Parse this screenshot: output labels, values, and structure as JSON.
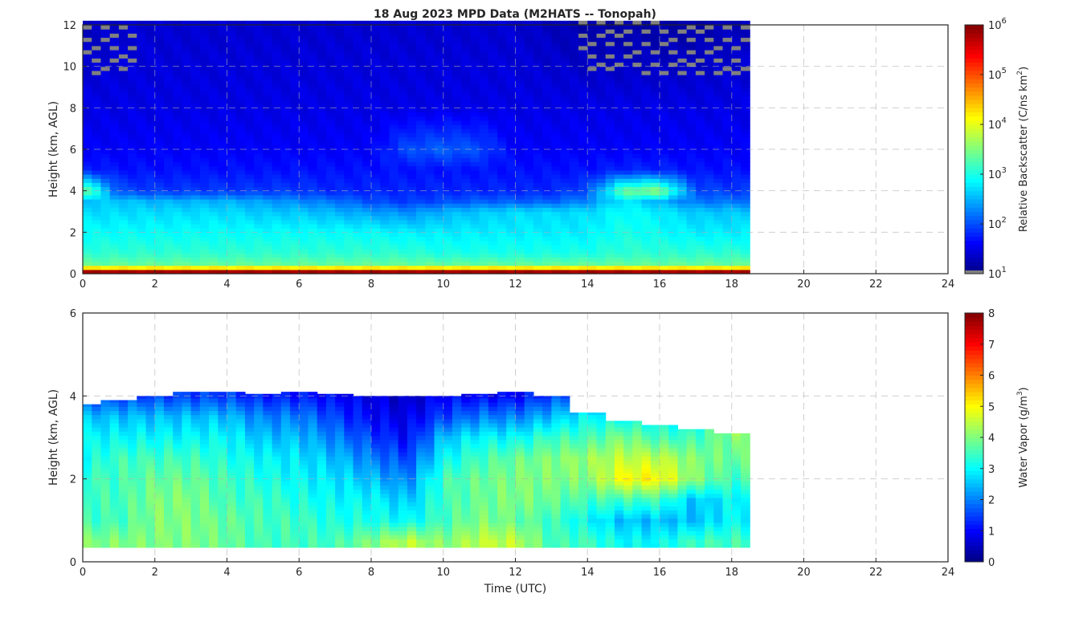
{
  "title": "18 Aug 2023 MPD Data (M2HATS -- Tonopah)",
  "chart_data": [
    {
      "type": "heatmap",
      "panel": "top",
      "title": "18 Aug 2023 MPD Data (M2HATS -- Tonopah)",
      "xlabel": "",
      "ylabel": "Height (km, AGL)",
      "xlim": [
        0,
        24
      ],
      "ylim": [
        0,
        12
      ],
      "xticks": [
        "0",
        "2",
        "4",
        "6",
        "8",
        "10",
        "12",
        "14",
        "16",
        "18",
        "20",
        "22",
        "24"
      ],
      "yticks": [
        "0",
        "2",
        "4",
        "6",
        "8",
        "10",
        "12"
      ],
      "grid": true,
      "colormap": "jet",
      "color_scale": "log",
      "colorbar": {
        "label": "Relative Backscatter (C/ns km²)",
        "label_main": "Relative Backscatter (C/ns km",
        "label_sup": "2",
        "label_end": ")",
        "range_log10": [
          1,
          6
        ],
        "ticks": [
          {
            "base": "10",
            "exp": "1"
          },
          {
            "base": "10",
            "exp": "2"
          },
          {
            "base": "10",
            "exp": "3"
          },
          {
            "base": "10",
            "exp": "4"
          },
          {
            "base": "10",
            "exp": "5"
          },
          {
            "base": "10",
            "exp": "6"
          }
        ]
      },
      "data_end_hour": 18.3,
      "hours": [
        0,
        1,
        2,
        3,
        4,
        5,
        6,
        7,
        8,
        9,
        10,
        11,
        12,
        13,
        14,
        15,
        16,
        17,
        18
      ],
      "heights_km": [
        0.1,
        0.4,
        1,
        2,
        3,
        3.5,
        4,
        5,
        6,
        8,
        12
      ],
      "log10_backscatter": [
        [
          5.8,
          5.8,
          5.8,
          5.8,
          5.8,
          5.8,
          5.8,
          5.8,
          5.8,
          5.8,
          5.8,
          5.8,
          5.8,
          5.8,
          5.8,
          5.8,
          5.8,
          5.8,
          5.8
        ],
        [
          3.4,
          3.4,
          3.4,
          3.4,
          3.4,
          3.4,
          3.4,
          3.4,
          3.4,
          3.4,
          3.4,
          3.4,
          3.4,
          3.4,
          3.4,
          3.4,
          3.4,
          3.4,
          3.4
        ],
        [
          3.1,
          3.1,
          3.1,
          3.1,
          3.1,
          3.1,
          3.1,
          3.1,
          3.1,
          3.1,
          3.0,
          3.0,
          3.0,
          3.0,
          3.0,
          3.1,
          3.1,
          3.1,
          3.1
        ],
        [
          2.9,
          2.9,
          2.9,
          2.9,
          2.9,
          2.9,
          2.9,
          2.9,
          2.9,
          2.8,
          2.8,
          2.8,
          2.8,
          2.8,
          2.8,
          3.0,
          2.9,
          2.8,
          2.8
        ],
        [
          2.7,
          2.7,
          2.7,
          2.7,
          2.7,
          2.6,
          2.6,
          2.5,
          2.4,
          2.3,
          2.5,
          2.6,
          2.7,
          2.7,
          2.7,
          2.9,
          2.8,
          2.6,
          2.6
        ],
        [
          2.6,
          2.6,
          2.5,
          2.5,
          2.5,
          2.4,
          2.3,
          2.2,
          2.0,
          1.9,
          2.0,
          2.1,
          2.1,
          2.1,
          2.3,
          2.8,
          2.5,
          2.2,
          2.2
        ],
        [
          3.6,
          2.0,
          1.9,
          1.9,
          1.9,
          1.9,
          1.9,
          1.8,
          1.8,
          1.8,
          1.8,
          1.8,
          1.8,
          1.8,
          2.0,
          3.4,
          3.6,
          2.0,
          1.9
        ],
        [
          1.8,
          1.7,
          1.7,
          1.7,
          1.7,
          1.7,
          1.7,
          1.7,
          1.7,
          1.7,
          1.7,
          1.7,
          1.7,
          1.7,
          1.7,
          1.8,
          1.8,
          1.7,
          1.7
        ],
        [
          1.6,
          1.6,
          1.6,
          1.6,
          1.6,
          1.6,
          1.6,
          1.6,
          1.6,
          2.0,
          2.1,
          2.0,
          1.6,
          1.6,
          1.6,
          1.6,
          1.6,
          1.6,
          1.6
        ],
        [
          1.5,
          1.5,
          1.5,
          1.5,
          1.5,
          1.5,
          1.5,
          1.5,
          1.5,
          1.5,
          1.5,
          1.5,
          1.5,
          1.5,
          1.5,
          1.5,
          1.5,
          1.5,
          1.5
        ],
        [
          1.3,
          1.4,
          1.4,
          1.4,
          1.4,
          1.4,
          1.4,
          1.4,
          1.4,
          1.4,
          1.4,
          1.4,
          1.4,
          1.3,
          1.2,
          1.2,
          1.2,
          1.2,
          1.3
        ]
      ],
      "missing_color": "#808080"
    },
    {
      "type": "heatmap",
      "panel": "bottom",
      "xlabel": "Time (UTC)",
      "ylabel": "Height (km, AGL)",
      "xlim": [
        0,
        24
      ],
      "ylim": [
        0,
        6
      ],
      "xticks": [
        "0",
        "2",
        "4",
        "6",
        "8",
        "10",
        "12",
        "14",
        "16",
        "18",
        "20",
        "22",
        "24"
      ],
      "yticks": [
        "0",
        "2",
        "4",
        "6"
      ],
      "grid": true,
      "colormap": "jet",
      "colorbar": {
        "label_main": "Water Vapor (g/m",
        "label_sup": "3",
        "label_end": ")",
        "range": [
          0,
          8
        ],
        "ticks": [
          "0",
          "1",
          "2",
          "3",
          "4",
          "5",
          "6",
          "7",
          "8"
        ]
      },
      "data_start_km": 0.35,
      "data_end_hour": 18.3,
      "hours": [
        0,
        1,
        2,
        3,
        4,
        5,
        6,
        7,
        8,
        9,
        10,
        11,
        12,
        13,
        14,
        15,
        16,
        17,
        18
      ],
      "heights_km": [
        0.5,
        1.0,
        1.5,
        2.0,
        2.5,
        3.0,
        3.5,
        4.0
      ],
      "data_top_km": [
        3.8,
        3.9,
        4.0,
        4.1,
        4.1,
        4.05,
        4.1,
        4.05,
        4.0,
        4.0,
        4.0,
        4.05,
        4.1,
        4.0,
        3.6,
        3.4,
        3.3,
        3.2,
        3.1
      ],
      "water_vapor_g_m3": [
        [
          4.0,
          4.0,
          4.0,
          4.0,
          3.8,
          3.5,
          3.5,
          3.5,
          4.0,
          4.5,
          4.0,
          4.5,
          4.5,
          3.5,
          3.5,
          3.0,
          3.0,
          3.5,
          3.5
        ],
        [
          3.5,
          3.5,
          4.0,
          4.0,
          3.8,
          3.5,
          3.5,
          3.2,
          3.2,
          3.0,
          3.5,
          4.0,
          3.8,
          3.5,
          3.0,
          2.5,
          2.5,
          2.5,
          3.0
        ],
        [
          3.5,
          3.5,
          4.0,
          4.0,
          3.5,
          3.5,
          3.2,
          3.0,
          3.0,
          2.5,
          3.5,
          3.8,
          4.0,
          3.8,
          3.5,
          3.5,
          3.5,
          2.5,
          3.0
        ],
        [
          3.5,
          3.5,
          3.8,
          3.8,
          3.5,
          3.2,
          3.0,
          2.8,
          2.5,
          2.0,
          3.5,
          3.8,
          4.0,
          4.0,
          4.0,
          5.0,
          5.0,
          4.0,
          3.5
        ],
        [
          3.0,
          3.5,
          3.5,
          3.5,
          3.2,
          3.0,
          2.8,
          2.5,
          2.0,
          1.5,
          3.0,
          3.5,
          3.8,
          4.0,
          4.2,
          4.5,
          4.5,
          4.0,
          3.8
        ],
        [
          3.0,
          3.0,
          3.0,
          3.0,
          3.0,
          2.5,
          2.5,
          2.0,
          1.5,
          1.0,
          2.5,
          3.0,
          3.0,
          3.5,
          3.5,
          4.0,
          3.5,
          3.5,
          4.0
        ],
        [
          2.5,
          2.5,
          2.5,
          2.5,
          2.5,
          2.0,
          2.0,
          1.5,
          1.0,
          0.8,
          1.5,
          2.0,
          2.0,
          2.5,
          3.0,
          3.0,
          3.0,
          3.0,
          4.5
        ],
        [
          1.5,
          1.5,
          1.5,
          1.5,
          1.5,
          1.2,
          1.2,
          1.0,
          0.8,
          0.5,
          1.0,
          1.0,
          1.0,
          1.5,
          2.0,
          2.0,
          2.0,
          2.0,
          2.0
        ]
      ]
    }
  ]
}
